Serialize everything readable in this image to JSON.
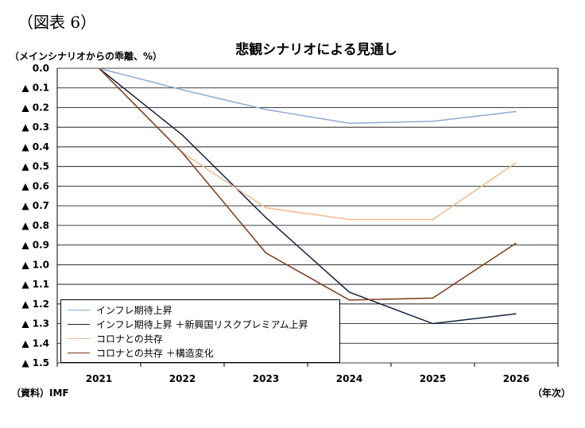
{
  "figure_label": "（図表 6）",
  "unit_label": "（メインシナリオからの乖離、%）",
  "source_label": "（資料）IMF",
  "x_unit_label": "（年次）",
  "chart_data": {
    "type": "line",
    "title": "悲観シナリオによる見通し",
    "x": [
      "2021",
      "2022",
      "2023",
      "2024",
      "2025",
      "2026"
    ],
    "ylim": [
      0,
      1.5
    ],
    "y_inverted": true,
    "y_ticks": [
      "0.0",
      "▲ 0.1",
      "▲ 0.2",
      "▲ 0.3",
      "▲ 0.4",
      "▲ 0.5",
      "▲ 0.6",
      "▲ 0.7",
      "▲ 0.8",
      "▲ 0.9",
      "▲ 1.0",
      "▲ 1.1",
      "▲ 1.2",
      "▲ 1.3",
      "▲ 1.4",
      "▲ 1.5"
    ],
    "grid": true,
    "legend_position": "bottom-left",
    "series": [
      {
        "name": "インフレ期待上昇",
        "color": "#8ea7cf",
        "values": [
          0,
          0.11,
          0.21,
          0.28,
          0.27,
          0.22
        ]
      },
      {
        "name": "インフレ期待上昇 ＋新興国リスクプレミアム上昇",
        "color": "#14213f",
        "values": [
          0,
          0.34,
          0.76,
          1.14,
          1.3,
          1.25
        ]
      },
      {
        "name": "コロナとの共存",
        "color": "#f2b98c",
        "values": [
          0,
          0.43,
          0.71,
          0.77,
          0.77,
          0.48
        ]
      },
      {
        "name": "コロナとの共存 ＋構造変化",
        "color": "#7a3a18",
        "values": [
          0,
          0.43,
          0.94,
          1.18,
          1.17,
          0.89
        ]
      }
    ]
  }
}
